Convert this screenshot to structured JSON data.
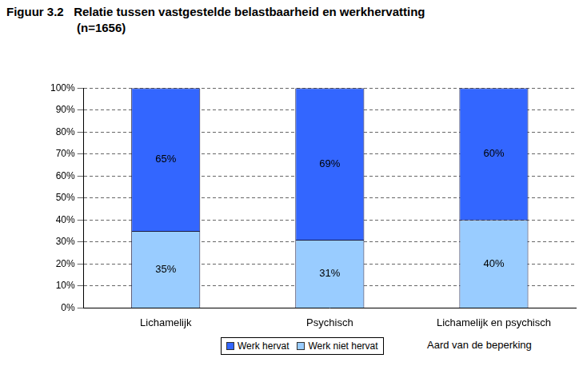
{
  "chart_data": {
    "type": "bar",
    "title": "Figuur 3.2   Relatie tussen vastgestelde belastbaarheid en werkhervatting",
    "subtitle": "(n=1656)",
    "x_label": "Aard van de beperking",
    "categories": [
      "Lichamelijk",
      "Psychisch",
      "Lichamelijk en psychisch"
    ],
    "series": [
      {
        "name": "Werk niet hervat",
        "color": "#99ccff",
        "values": [
          35,
          31,
          40
        ],
        "value_labels": [
          "35%",
          "31%",
          "40%"
        ]
      },
      {
        "name": "Werk hervat",
        "color": "#3366ff",
        "values": [
          65,
          69,
          60
        ],
        "value_labels": [
          "65%",
          "69%",
          "60%"
        ]
      }
    ],
    "stacked": true,
    "data_labels": true,
    "grid": true,
    "legend": "bottom",
    "ylim": [
      0,
      100
    ],
    "yticks": [
      {
        "value": 0,
        "label": "0%"
      },
      {
        "value": 10,
        "label": "10%"
      },
      {
        "value": 20,
        "label": "20%"
      },
      {
        "value": 30,
        "label": "30%"
      },
      {
        "value": 40,
        "label": "40%"
      },
      {
        "value": 50,
        "label": "50%"
      },
      {
        "value": 60,
        "label": "60%"
      },
      {
        "value": 70,
        "label": "70%"
      },
      {
        "value": 80,
        "label": "80%"
      },
      {
        "value": 90,
        "label": "90%"
      },
      {
        "value": 100,
        "label": "100%"
      }
    ]
  }
}
